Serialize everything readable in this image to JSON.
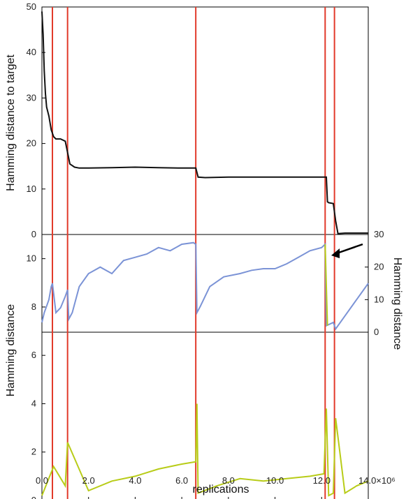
{
  "chart_data": [
    {
      "panel": "top",
      "type": "line",
      "ylabel": "Hamming distance to target",
      "xlim": [
        0,
        14.0
      ],
      "ylim": [
        0,
        50
      ],
      "yticks": [
        "0",
        "10",
        "20",
        "30",
        "40",
        "50"
      ],
      "series": [
        {
          "color": "#111111",
          "x": [
            0.0,
            0.05,
            0.1,
            0.15,
            0.2,
            0.3,
            0.4,
            0.5,
            0.6,
            0.8,
            1.0,
            1.1,
            1.2,
            1.4,
            1.6,
            2.0,
            3.0,
            4.0,
            5.0,
            6.0,
            6.6,
            6.7,
            7.0,
            8.0,
            9.0,
            10.0,
            11.0,
            12.0,
            12.2,
            12.25,
            12.3,
            12.5,
            12.6,
            12.7,
            13.0,
            14.0
          ],
          "y": [
            49,
            44,
            36,
            31,
            28,
            26,
            23,
            21.5,
            21,
            21,
            20.5,
            18,
            15.5,
            14.8,
            14.6,
            14.6,
            14.7,
            14.8,
            14.7,
            14.6,
            14.6,
            12.6,
            12.5,
            12.6,
            12.6,
            12.6,
            12.6,
            12.6,
            12.6,
            7.2,
            7.0,
            6.8,
            3,
            0.2,
            0.3,
            0.3
          ]
        }
      ]
    },
    {
      "panel": "middle",
      "type": "line",
      "ylabel": "Hamming distance",
      "y2label": "Hamming distance",
      "y2ticks": [
        "0",
        "10",
        "20",
        "30"
      ],
      "ylim": [
        0,
        30
      ],
      "annotation": "arrow",
      "series": [
        {
          "color": "#7b93d6",
          "x": [
            0.0,
            0.1,
            0.2,
            0.3,
            0.4,
            0.45,
            0.5,
            0.6,
            0.8,
            1.0,
            1.1,
            1.15,
            1.3,
            1.6,
            2.0,
            2.5,
            3.0,
            3.5,
            4.0,
            4.5,
            5.0,
            5.5,
            6.0,
            6.5,
            6.6,
            6.65,
            6.8,
            7.2,
            7.8,
            8.5,
            9.0,
            9.5,
            10.0,
            10.5,
            11.0,
            11.5,
            12.0,
            12.15,
            12.2,
            12.5,
            12.6,
            13.0,
            13.5,
            14.0
          ],
          "y": [
            3,
            6,
            8,
            10,
            14,
            15,
            12,
            6,
            7.5,
            11,
            13,
            4,
            6,
            14,
            18,
            20,
            18,
            22,
            23,
            24,
            26,
            25,
            27,
            27.5,
            27,
            6,
            8,
            14,
            17,
            18,
            19,
            19.5,
            19.5,
            21,
            23,
            25,
            26,
            27,
            2,
            3,
            1,
            5,
            10,
            15
          ]
        },
        {
          "color": "#b8cc18",
          "x": [
            12.15,
            12.2,
            12.25
          ],
          "y": [
            27,
            14,
            2
          ]
        }
      ]
    },
    {
      "panel": "bottom",
      "type": "line",
      "xlabel": "replications",
      "xlim": [
        0,
        14.0
      ],
      "xticks": [
        "0.0",
        "2.0",
        "4.0",
        "6.0",
        "8.0",
        "10.0",
        "12.0",
        "14.0×10⁶"
      ],
      "yticks": [
        "0",
        "2",
        "4",
        "6",
        "8",
        "10"
      ],
      "ylim": [
        0,
        11
      ],
      "series": [
        {
          "color": "#b8cc18",
          "x": [
            0.0,
            0.5,
            1.0,
            1.1,
            2.0,
            3.0,
            4.0,
            5.0,
            6.0,
            6.6,
            6.65,
            6.7,
            7.5,
            8.5,
            9.5,
            10.5,
            11.5,
            12.1,
            12.2,
            12.3,
            12.5,
            12.6,
            13.0,
            13.5,
            14.0
          ],
          "y": [
            0.2,
            1.4,
            0.6,
            2.4,
            0.4,
            0.8,
            1.0,
            1.3,
            1.5,
            1.6,
            4.0,
            0.3,
            0.6,
            0.9,
            0.8,
            0.9,
            1.0,
            1.1,
            3.8,
            0.2,
            0.3,
            3.4,
            0.3,
            0.6,
            0.8
          ]
        }
      ]
    }
  ],
  "red_lines_x": [
    0.45,
    1.1,
    6.6,
    12.15,
    12.55
  ]
}
